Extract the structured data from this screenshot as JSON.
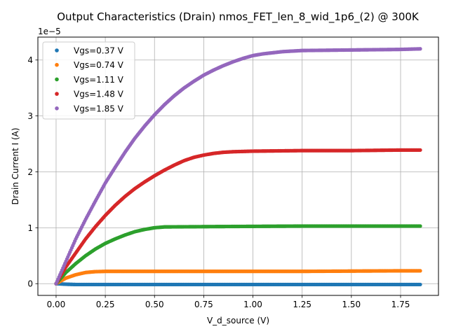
{
  "chart_data": {
    "type": "scatter",
    "title": "Output Characteristics (Drain) nmos_FET_len_8_wid_1p6_(2) @ 300K",
    "xlabel": "V_d_source (V)",
    "ylabel": "Drain Current I (A)",
    "y_offset_label": "1e−5",
    "y_multiplier": 1e-05,
    "xlim": [
      -0.0925,
      1.9425
    ],
    "ylim": [
      -0.21,
      4.41
    ],
    "xticks": [
      0.0,
      0.25,
      0.5,
      0.75,
      1.0,
      1.25,
      1.5,
      1.75
    ],
    "xtick_labels": [
      "0.00",
      "0.25",
      "0.50",
      "0.75",
      "1.00",
      "1.25",
      "1.50",
      "1.75"
    ],
    "yticks": [
      0,
      1,
      2,
      3,
      4
    ],
    "ytick_labels": [
      "0",
      "1",
      "2",
      "3",
      "4"
    ],
    "grid": true,
    "legend_position": "top-left",
    "x_range": [
      0.0,
      1.85
    ],
    "series": [
      {
        "name": "Vgs=0.37 V",
        "color": "#1f77b4",
        "x": [
          0.0,
          0.05,
          0.1,
          0.25,
          0.5,
          0.75,
          1.0,
          1.25,
          1.5,
          1.75,
          1.85
        ],
        "y": [
          0.0,
          -0.01,
          -0.015,
          -0.015,
          -0.015,
          -0.015,
          -0.015,
          -0.015,
          -0.015,
          -0.015,
          -0.015
        ]
      },
      {
        "name": "Vgs=0.74 V",
        "color": "#ff7f0e",
        "x": [
          0.0,
          0.05,
          0.1,
          0.15,
          0.2,
          0.25,
          0.3,
          0.5,
          0.75,
          1.0,
          1.25,
          1.5,
          1.75,
          1.85
        ],
        "y": [
          0.0,
          0.1,
          0.16,
          0.2,
          0.215,
          0.22,
          0.22,
          0.22,
          0.22,
          0.22,
          0.22,
          0.225,
          0.23,
          0.23
        ]
      },
      {
        "name": "Vgs=1.11 V",
        "color": "#2ca02c",
        "x": [
          0.0,
          0.05,
          0.1,
          0.15,
          0.2,
          0.25,
          0.3,
          0.35,
          0.4,
          0.45,
          0.5,
          0.55,
          0.75,
          1.0,
          1.25,
          1.5,
          1.75,
          1.85
        ],
        "y": [
          0.0,
          0.2,
          0.36,
          0.5,
          0.62,
          0.72,
          0.8,
          0.87,
          0.93,
          0.97,
          1.0,
          1.015,
          1.02,
          1.025,
          1.03,
          1.03,
          1.03,
          1.03
        ]
      },
      {
        "name": "Vgs=1.48 V",
        "color": "#d62728",
        "x": [
          0.0,
          0.05,
          0.1,
          0.15,
          0.2,
          0.25,
          0.3,
          0.35,
          0.4,
          0.45,
          0.5,
          0.55,
          0.6,
          0.65,
          0.7,
          0.75,
          0.8,
          0.85,
          0.9,
          1.0,
          1.25,
          1.5,
          1.75,
          1.85
        ],
        "y": [
          0.0,
          0.3,
          0.55,
          0.8,
          1.02,
          1.22,
          1.4,
          1.56,
          1.7,
          1.82,
          1.93,
          2.03,
          2.12,
          2.2,
          2.26,
          2.3,
          2.33,
          2.35,
          2.36,
          2.37,
          2.38,
          2.38,
          2.39,
          2.39
        ]
      },
      {
        "name": "Vgs=1.85 V",
        "color": "#9467bd",
        "x": [
          0.0,
          0.05,
          0.1,
          0.15,
          0.2,
          0.25,
          0.3,
          0.35,
          0.4,
          0.45,
          0.5,
          0.55,
          0.6,
          0.65,
          0.7,
          0.75,
          0.8,
          0.85,
          0.9,
          0.95,
          1.0,
          1.05,
          1.1,
          1.15,
          1.25,
          1.5,
          1.75,
          1.85
        ],
        "y": [
          0.0,
          0.4,
          0.8,
          1.15,
          1.48,
          1.8,
          2.08,
          2.35,
          2.6,
          2.82,
          3.02,
          3.2,
          3.36,
          3.5,
          3.62,
          3.73,
          3.82,
          3.9,
          3.97,
          4.03,
          4.08,
          4.11,
          4.13,
          4.15,
          4.17,
          4.18,
          4.19,
          4.2
        ]
      }
    ]
  }
}
